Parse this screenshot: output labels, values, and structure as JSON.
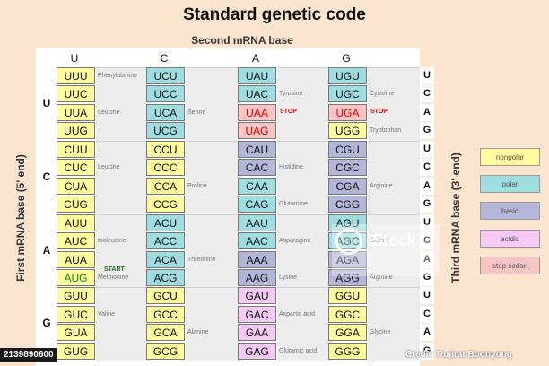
{
  "title": "Standard genetic code",
  "second_axis": "Second mRNA base",
  "first_axis": "First mRNA base (5' end)",
  "third_axis": "Third mRNA base (3' end)",
  "col_bases": [
    "U",
    "C",
    "A",
    "G"
  ],
  "row_bases": [
    "U",
    "C",
    "A",
    "G"
  ],
  "third_bases": [
    "U",
    "C",
    "A",
    "G",
    "U",
    "C",
    "A",
    "G",
    "U",
    "C",
    "A",
    "G",
    "U",
    "C",
    "A",
    "G"
  ],
  "codons": [
    [
      "UUU",
      "UUC",
      "UUA",
      "UUG",
      "CUU",
      "CUC",
      "CUA",
      "CUG",
      "AUU",
      "AUC",
      "AUA",
      "AUG",
      "GUU",
      "GUC",
      "GUA",
      "GUG"
    ],
    [
      "UCU",
      "UCC",
      "UCA",
      "UCG",
      "CCU",
      "CCC",
      "CCA",
      "CCG",
      "ACU",
      "ACC",
      "ACA",
      "ACG",
      "GCU",
      "GCC",
      "GCA",
      "GCG"
    ],
    [
      "UAU",
      "UAC",
      "UAA",
      "UAG",
      "CAU",
      "CAC",
      "CAA",
      "CAG",
      "AAU",
      "AAC",
      "AAA",
      "AAG",
      "GAU",
      "GAC",
      "GAA",
      "GAG"
    ],
    [
      "UGU",
      "UGC",
      "UGA",
      "UGG",
      "CGU",
      "CGC",
      "CGA",
      "CGG",
      "AGU",
      "AGC",
      "AGA",
      "AGG",
      "GGU",
      "GGC",
      "GGA",
      "GGG"
    ]
  ],
  "codon_class": [
    [
      "nonpolar",
      "nonpolar",
      "nonpolar",
      "nonpolar",
      "nonpolar",
      "nonpolar",
      "nonpolar",
      "nonpolar",
      "nonpolar",
      "nonpolar",
      "nonpolar",
      "nonpolar",
      "nonpolar",
      "nonpolar",
      "nonpolar",
      "nonpolar"
    ],
    [
      "polar",
      "polar",
      "polar",
      "polar",
      "nonpolar",
      "nonpolar",
      "nonpolar",
      "nonpolar",
      "polar",
      "polar",
      "polar",
      "polar",
      "nonpolar",
      "nonpolar",
      "nonpolar",
      "nonpolar"
    ],
    [
      "polar",
      "polar",
      "stop",
      "stop",
      "basic",
      "basic",
      "polar",
      "polar",
      "polar",
      "polar",
      "basic",
      "basic",
      "acidic",
      "acidic",
      "acidic",
      "acidic"
    ],
    [
      "polar",
      "polar",
      "stop",
      "nonpolar",
      "basic",
      "basic",
      "basic",
      "basic",
      "polar",
      "polar",
      "basic",
      "basic",
      "nonpolar",
      "nonpolar",
      "nonpolar",
      "nonpolar"
    ]
  ],
  "amino_labels": [
    [
      {
        "text": "Phenylalanine",
        "row": 0
      },
      {
        "text": "Leucine",
        "row": 2
      },
      {
        "text": "Leucine",
        "row": 5
      },
      {
        "text": "Isoleucine",
        "row": 9
      },
      {
        "text": "Methionine",
        "row": 11
      },
      {
        "text": "Valine",
        "row": 13
      }
    ],
    [
      {
        "text": "Serine",
        "row": 2
      },
      {
        "text": "Proline",
        "row": 6
      },
      {
        "text": "Threonine",
        "row": 10
      },
      {
        "text": "Alanine",
        "row": 14
      }
    ],
    [
      {
        "text": "Tyrosine",
        "row": 1
      },
      {
        "text": "Histidine",
        "row": 5
      },
      {
        "text": "Glutamine",
        "row": 7
      },
      {
        "text": "Asparagine",
        "row": 9
      },
      {
        "text": "Lysine",
        "row": 11
      },
      {
        "text": "Aspartic acid",
        "row": 13
      },
      {
        "text": "Glutamic acid",
        "row": 15
      }
    ],
    [
      {
        "text": "Cysteine",
        "row": 1
      },
      {
        "text": "Tryptophan",
        "row": 3
      },
      {
        "text": "Arginine",
        "row": 6
      },
      {
        "text": "Serine",
        "row": 9
      },
      {
        "text": "Arginine",
        "row": 11
      },
      {
        "text": "Glycine",
        "row": 14
      }
    ]
  ],
  "stop_label": "STOP",
  "start_label": "START",
  "legend": [
    {
      "key": "nonpolar",
      "label": "nonpolar",
      "color": "#fffa9e"
    },
    {
      "key": "polar",
      "label": "polar",
      "color": "#9fdde0"
    },
    {
      "key": "basic",
      "label": "basic",
      "color": "#b3b6d9"
    },
    {
      "key": "acidic",
      "label": "acidic",
      "color": "#f6c9f6"
    },
    {
      "key": "stop",
      "label": "stop codon",
      "color": "#f8c4c4"
    }
  ],
  "colors": {
    "stop_text": "#e00000",
    "start_text": "#1a8a1a"
  },
  "watermark": {
    "brand": "iStock",
    "credit": "Credit: Rujirat Boonyong"
  },
  "stock_id": "2139890600"
}
